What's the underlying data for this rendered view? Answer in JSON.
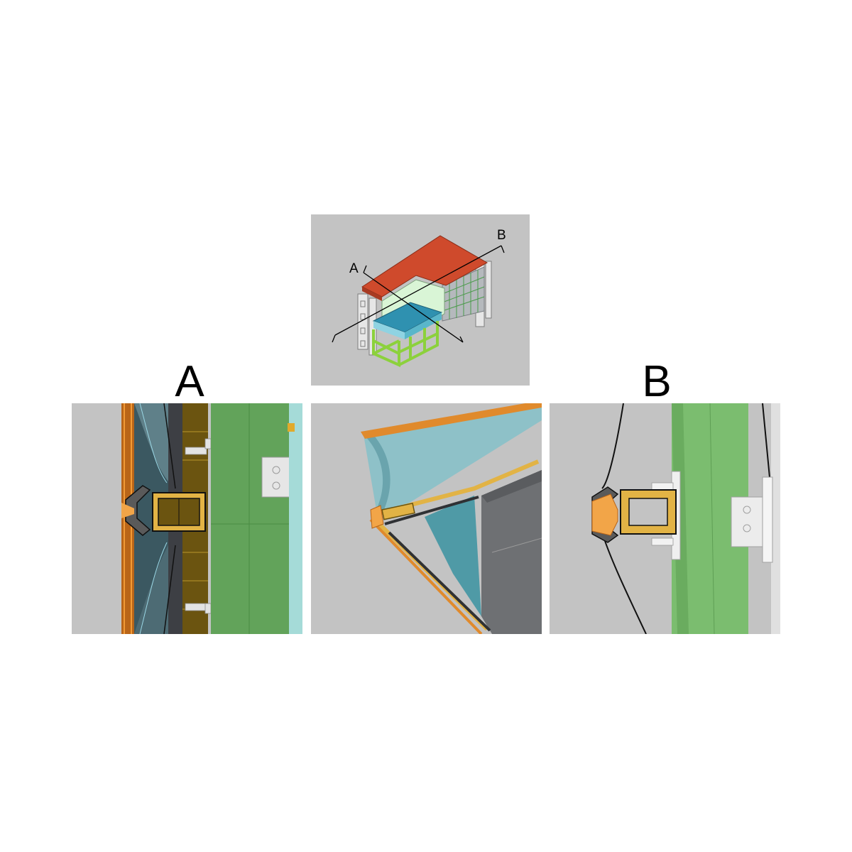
{
  "overview": {
    "section_labels": {
      "a": "A",
      "b": "B"
    }
  },
  "details": {
    "a": {
      "label": "A"
    },
    "b": {
      "label": "B"
    }
  },
  "colors": {
    "background": "#c3c3c3",
    "roof": "#cf4a2c",
    "frame_green": "#8cd13c",
    "water": "#3aa3b8",
    "glass": "#d9f5d6",
    "orange": "#e8892a",
    "gold": "#e2b345",
    "dark_gray": "#3d3f44",
    "green_panel": "#62a35a",
    "light_green_panel": "#7bbd6f"
  }
}
